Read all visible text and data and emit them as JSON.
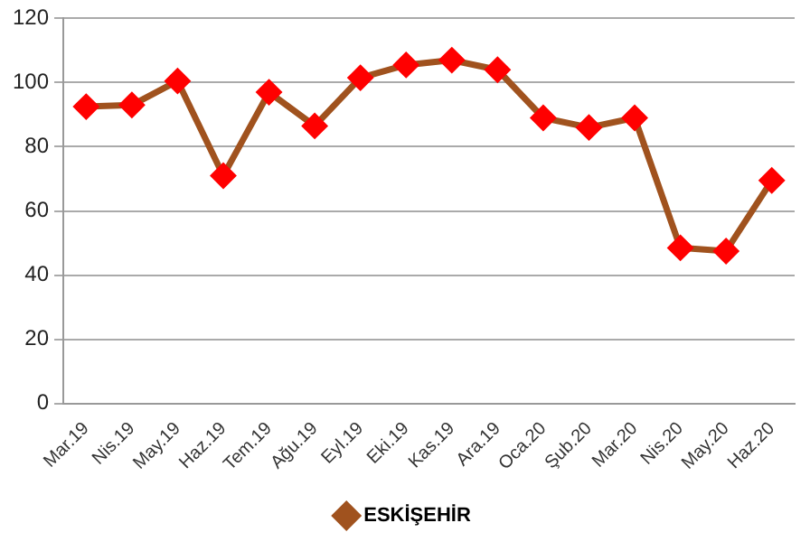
{
  "chart_data": {
    "type": "line",
    "categories": [
      "Mar.19",
      "Nis.19",
      "May.19",
      "Haz.19",
      "Tem.19",
      "Ağu.19",
      "Eyl.19",
      "Eki.19",
      "Kas.19",
      "Ara.19",
      "Oca.20",
      "Şub.20",
      "Mar.20",
      "Nis.20",
      "May.20",
      "Haz.20"
    ],
    "series": [
      {
        "name": "ESKİŞEHİR",
        "color": "#a0521e",
        "colors": [
          "#ff0000",
          "#ff0000",
          "#ff0000",
          "#ff0000",
          "#ff0000",
          "#ff0000",
          "#ff0000",
          "#ff0000",
          "#ff0000",
          "#ff0000",
          "#ff0000",
          "#ff0000",
          "#ff0000",
          "#ff0000",
          "#ff0000",
          "#ff0000"
        ],
        "values": [
          92.5,
          93,
          100.5,
          71,
          97,
          86.5,
          101.5,
          105.5,
          107,
          104,
          89,
          86,
          89,
          48.5,
          47.5,
          69.5
        ]
      }
    ],
    "ylim": [
      0,
      120
    ],
    "yticks": [
      0,
      20,
      40,
      60,
      80,
      100,
      120
    ],
    "grid": "y",
    "legend": "bottom",
    "marker": "diamond",
    "line_style": "solid"
  }
}
